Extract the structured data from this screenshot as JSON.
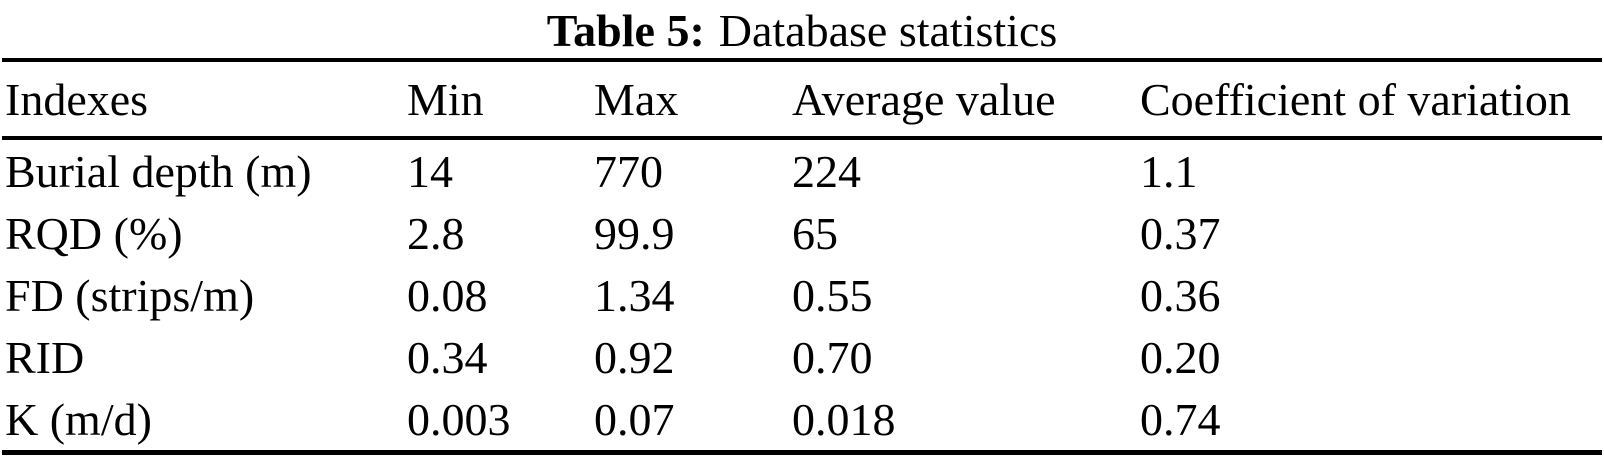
{
  "caption": {
    "label": "Table 5:",
    "text": "Database statistics"
  },
  "table": {
    "columns": [
      "Indexes",
      "Min",
      "Max",
      "Average value",
      "Coefficient of variation"
    ],
    "rows": [
      [
        "Burial depth (m)",
        "14",
        "770",
        "224",
        "1.1"
      ],
      [
        "RQD (%)",
        "2.8",
        "99.9",
        "65",
        "0.37"
      ],
      [
        "FD (strips/m)",
        "0.08",
        "1.34",
        "0.55",
        "0.36"
      ],
      [
        "RID",
        "0.34",
        "0.92",
        "0.70",
        "0.20"
      ],
      [
        "K (m/d)",
        "0.003",
        "0.07",
        "0.018",
        "0.74"
      ]
    ]
  },
  "chart_data": {
    "type": "table",
    "title": "Table 5: Database statistics",
    "columns": [
      "Indexes",
      "Min",
      "Max",
      "Average value",
      "Coefficient of variation"
    ],
    "rows": [
      {
        "index": "Burial depth (m)",
        "min": 14,
        "max": 770,
        "average": 224,
        "coefficient_of_variation": 1.1
      },
      {
        "index": "RQD (%)",
        "min": 2.8,
        "max": 99.9,
        "average": 65,
        "coefficient_of_variation": 0.37
      },
      {
        "index": "FD (strips/m)",
        "min": 0.08,
        "max": 1.34,
        "average": 0.55,
        "coefficient_of_variation": 0.36
      },
      {
        "index": "RID",
        "min": 0.34,
        "max": 0.92,
        "average": 0.7,
        "coefficient_of_variation": 0.2
      },
      {
        "index": "K (m/d)",
        "min": 0.003,
        "max": 0.07,
        "average": 0.018,
        "coefficient_of_variation": 0.74
      }
    ]
  }
}
